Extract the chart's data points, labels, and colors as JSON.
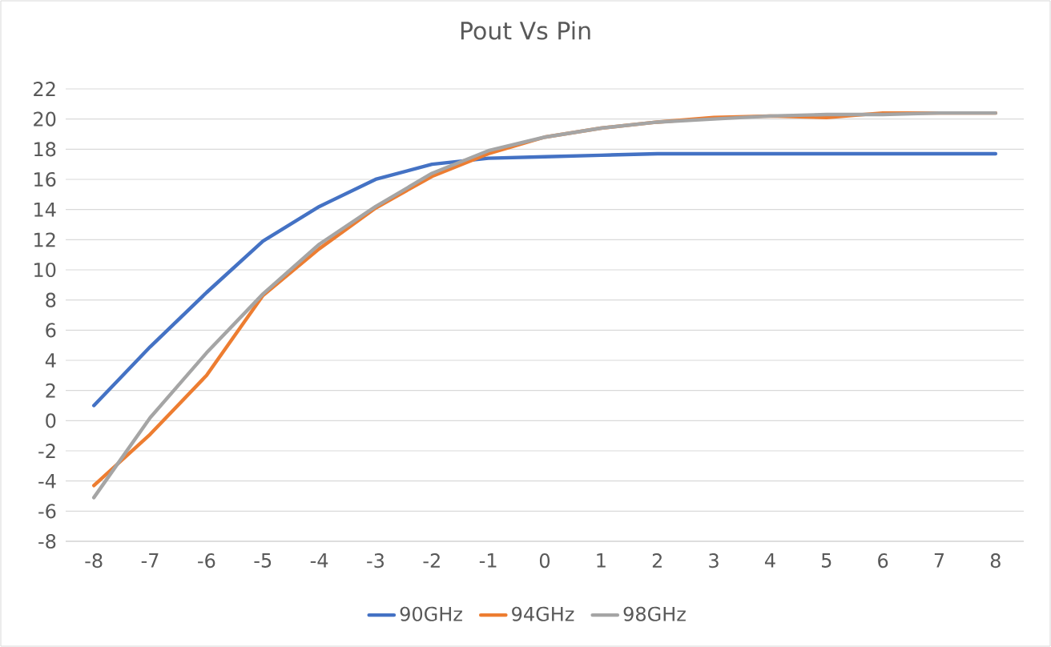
{
  "chart_data": {
    "type": "line",
    "title": "Pout Vs Pin",
    "categories": [
      "-8",
      "-7",
      "-6",
      "-5",
      "-4",
      "-3",
      "-2",
      "-1",
      "0",
      "1",
      "2",
      "3",
      "4",
      "5",
      "6",
      "7",
      "8"
    ],
    "series": [
      {
        "name": "90GHz",
        "color": "#4472c4",
        "values": [
          1.0,
          4.9,
          8.5,
          11.9,
          14.2,
          16.0,
          17.0,
          17.4,
          17.5,
          17.6,
          17.7,
          17.7,
          17.7,
          17.7,
          17.7,
          17.7,
          17.7
        ]
      },
      {
        "name": "94GHz",
        "color": "#ed7d31",
        "values": [
          -4.3,
          -0.9,
          3.0,
          8.3,
          11.4,
          14.1,
          16.2,
          17.7,
          18.8,
          19.4,
          19.8,
          20.1,
          20.2,
          20.1,
          20.4,
          20.4,
          20.4
        ]
      },
      {
        "name": "98GHz",
        "color": "#a5a5a5",
        "values": [
          -5.1,
          0.2,
          4.5,
          8.4,
          11.7,
          14.2,
          16.4,
          17.9,
          18.8,
          19.4,
          19.8,
          20.0,
          20.2,
          20.3,
          20.3,
          20.4,
          20.4
        ]
      }
    ],
    "ylim": [
      -8,
      22
    ],
    "yticks": [
      -8,
      -6,
      -4,
      -2,
      0,
      2,
      4,
      6,
      8,
      10,
      12,
      14,
      16,
      18,
      20,
      22
    ],
    "grid": "y",
    "legend": "bottom",
    "marker": "none",
    "line_style": "solid"
  }
}
